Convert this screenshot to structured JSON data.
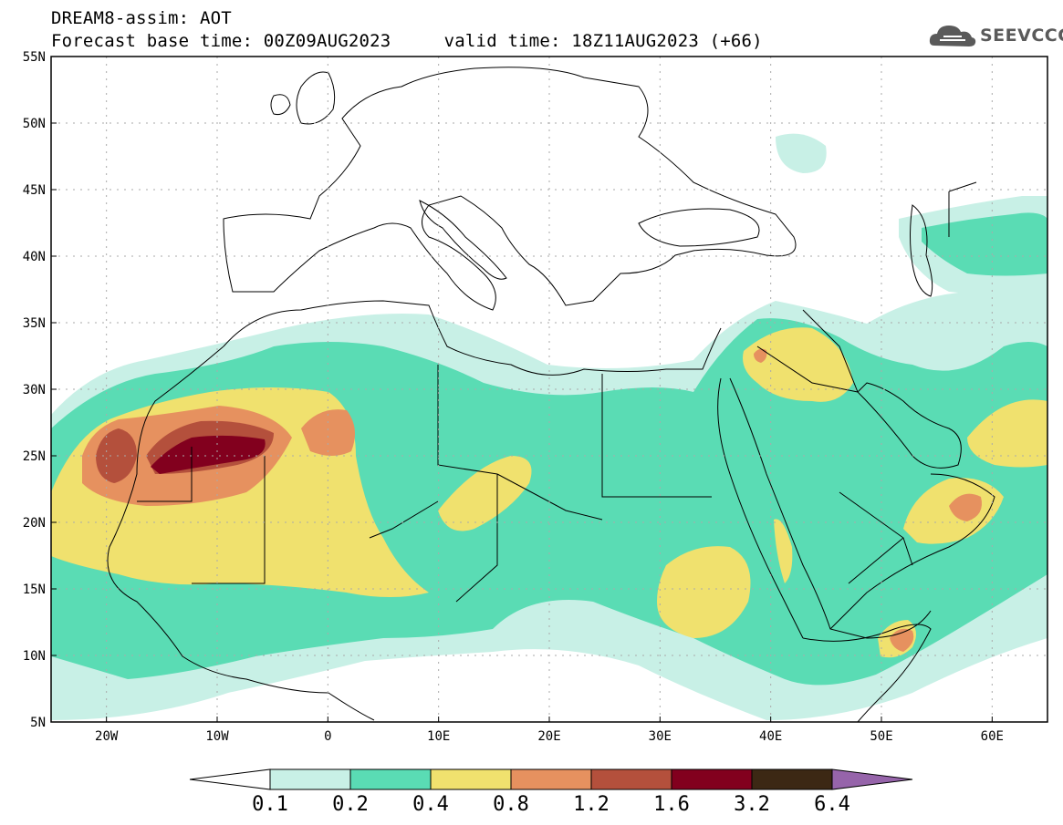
{
  "header": {
    "title_line_1": "DREAM8-assim: AOT",
    "title_line_2": "Forecast base time: 00Z09AUG2023     valid time: 18Z11AUG2023 (+66)"
  },
  "logo": {
    "text": "SEEVCCC",
    "icon": "cloud-icon"
  },
  "map": {
    "lon_range": [
      -25,
      65
    ],
    "lat_range": [
      5,
      55
    ],
    "x_ticks": [
      "20W",
      "10W",
      "0",
      "10E",
      "20E",
      "30E",
      "40E",
      "50E",
      "60E"
    ],
    "y_ticks": [
      "5N",
      "10N",
      "15N",
      "20N",
      "25N",
      "30N",
      "35N",
      "40N",
      "45N",
      "50N",
      "55N"
    ],
    "grid": "dotted"
  },
  "colorbar": {
    "labels": [
      "0.1",
      "0.2",
      "0.4",
      "0.8",
      "1.2",
      "1.6",
      "3.2",
      "6.4"
    ],
    "colors": [
      "#ffffff",
      "#c8f0e6",
      "#5adcb4",
      "#f0e16e",
      "#e6915f",
      "#b4503c",
      "#82001e",
      "#3c2814",
      "#9664aa"
    ]
  }
}
